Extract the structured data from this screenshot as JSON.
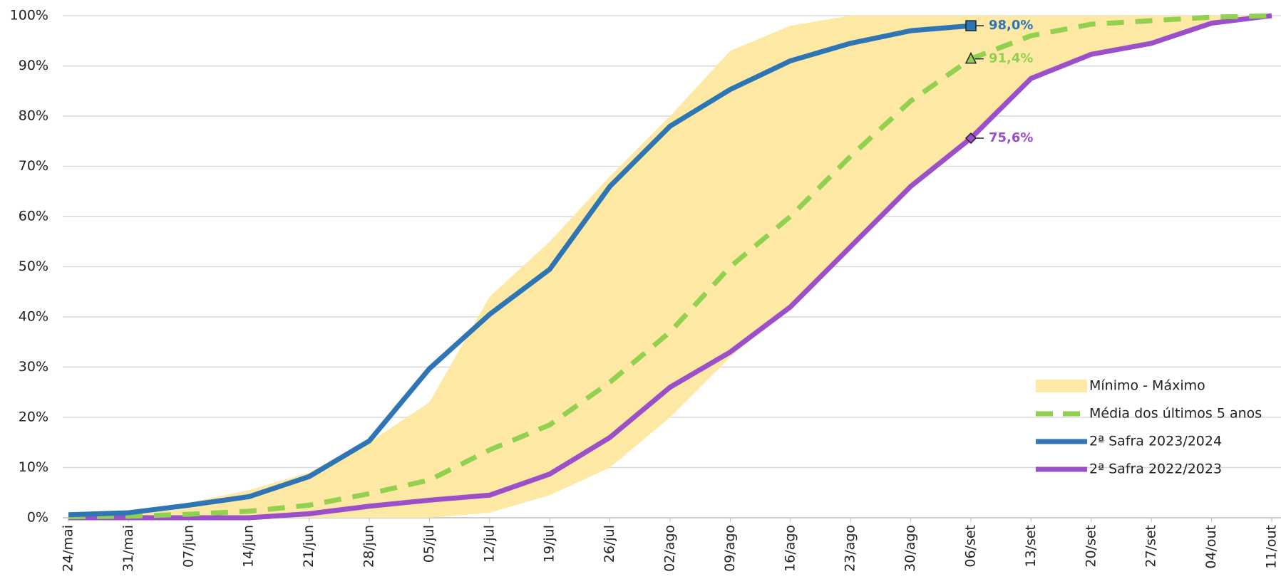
{
  "chart_data": {
    "type": "line",
    "categories": [
      "24/mai",
      "31/mai",
      "07/jun",
      "14/jun",
      "21/jun",
      "28/jun",
      "05/jul",
      "12/jul",
      "19/jul",
      "26/jul",
      "02/ago",
      "09/ago",
      "16/ago",
      "23/ago",
      "30/ago",
      "06/set",
      "13/set",
      "20/set",
      "27/set",
      "04/out",
      "11/out"
    ],
    "ylim": [
      0,
      100
    ],
    "yticks": [
      {
        "value": 0,
        "label": "0%"
      },
      {
        "value": 10,
        "label": "10%"
      },
      {
        "value": 20,
        "label": "20%"
      },
      {
        "value": 30,
        "label": "30%"
      },
      {
        "value": 40,
        "label": "40%"
      },
      {
        "value": 50,
        "label": "50%"
      },
      {
        "value": 60,
        "label": "60%"
      },
      {
        "value": 70,
        "label": "70%"
      },
      {
        "value": 80,
        "label": "80%"
      },
      {
        "value": 90,
        "label": "90%"
      },
      {
        "value": 100,
        "label": "100%"
      }
    ],
    "grid": true,
    "series": [
      {
        "name": "Mínimo - Máximo",
        "kind": "band",
        "color": "#fde8a4",
        "max": [
          0.5,
          1,
          3,
          5.5,
          9,
          15,
          23,
          44,
          55,
          68,
          80,
          93,
          98,
          100,
          100,
          100,
          100,
          100,
          100,
          100,
          100
        ],
        "min": [
          0,
          0,
          0,
          0,
          0,
          0,
          0,
          1,
          4.5,
          10,
          20,
          32,
          42,
          54,
          66,
          75.6,
          87.5,
          92.3,
          94.5,
          98.5,
          100
        ]
      },
      {
        "name": "Média dos últimos 5 anos",
        "kind": "dashed",
        "color": "#92d050",
        "marker": "triangle",
        "values": [
          0.2,
          0.3,
          0.7,
          1.3,
          2.5,
          4.8,
          7.5,
          13.5,
          18.5,
          27,
          37,
          50,
          60,
          72,
          83,
          91.4,
          96,
          98.3,
          99,
          99.7,
          100
        ],
        "value_labels": [
          null,
          null,
          null,
          null,
          null,
          null,
          null,
          null,
          null,
          null,
          null,
          null,
          null,
          null,
          null,
          "91,4%",
          null,
          null,
          null,
          null,
          null
        ]
      },
      {
        "name": "2ª Safra 2023/2024",
        "kind": "solid",
        "color": "#2e75b6",
        "marker": "square",
        "values": [
          0.6,
          1,
          2.5,
          4.2,
          8.2,
          15.3,
          29.7,
          40.5,
          49.5,
          66,
          78,
          85.3,
          91,
          94.5,
          97,
          98,
          null,
          null,
          null,
          null,
          null
        ],
        "value_labels": [
          null,
          null,
          null,
          null,
          null,
          null,
          null,
          null,
          null,
          null,
          null,
          null,
          null,
          null,
          null,
          "98,0%",
          null,
          null,
          null,
          null,
          null
        ]
      },
      {
        "name": "2ª Safra 2022/2023",
        "kind": "solid",
        "color": "#9b4fc9",
        "marker": "diamond",
        "values": [
          0,
          0,
          0,
          0,
          0.8,
          2.3,
          3.5,
          4.5,
          8.7,
          16,
          26,
          33,
          42,
          54,
          66,
          75.6,
          87.5,
          92.3,
          94.5,
          98.5,
          100
        ],
        "value_labels": [
          null,
          null,
          null,
          null,
          null,
          null,
          null,
          null,
          null,
          null,
          null,
          null,
          null,
          null,
          null,
          "75,6%",
          null,
          null,
          null,
          null,
          null
        ]
      }
    ]
  }
}
